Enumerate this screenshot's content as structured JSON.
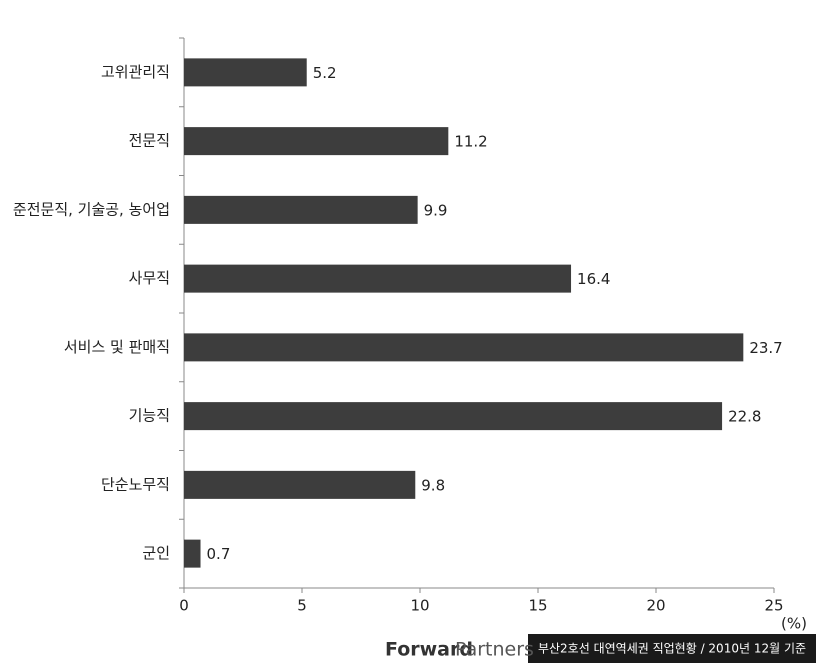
{
  "chart_data": {
    "type": "hbar",
    "categories": [
      "고위관리직",
      "전문직",
      "준전문직, 기술공, 농어업",
      "사무직",
      "서비스 및 판매직",
      "기능직",
      "단순노무직",
      "군인"
    ],
    "values": [
      5.2,
      11.2,
      9.9,
      16.4,
      23.7,
      22.8,
      9.8,
      0.7
    ],
    "color": "#3d3d3d",
    "xlim": [
      0,
      25
    ],
    "xticks": [
      0,
      5,
      10,
      15,
      20,
      25
    ],
    "unit_label": "(%)"
  },
  "footer": {
    "logo_bold": "Forward",
    "logo_light": "Partners",
    "caption": "부산2호선 대연역세권 직업현황 / 2010년 12월 기준"
  }
}
